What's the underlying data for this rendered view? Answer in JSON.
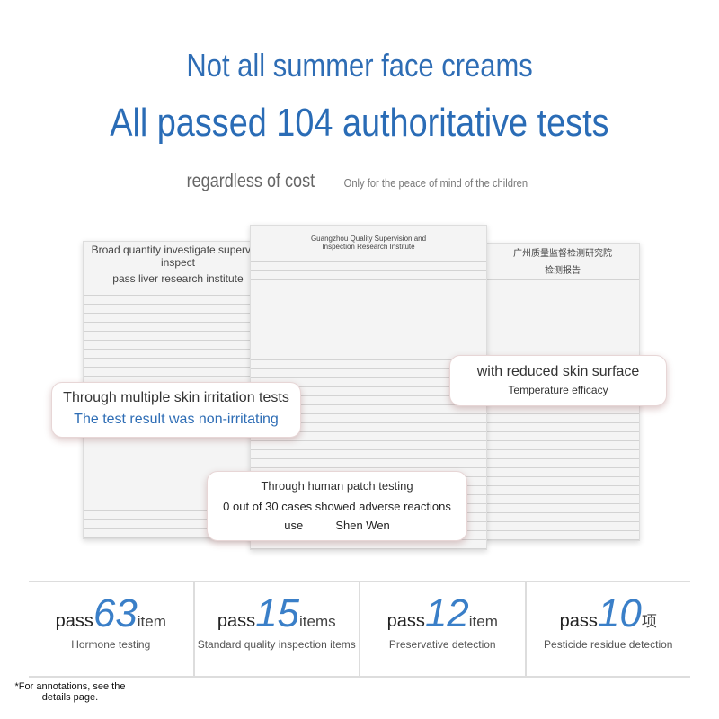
{
  "header": {
    "title": "Not all summer face creams",
    "subtitle": "All passed 104 authoritative tests"
  },
  "tagline": {
    "main": "regardless of cost",
    "sub": "Only for the peace of mind of the children"
  },
  "documents": [
    {
      "title": "Broad quantity investigate supervise inspect",
      "subtitle": "pass liver research institute"
    },
    {
      "title": "Guangzhou Quality Supervision and Inspection Research Institute"
    },
    {
      "title": "广州质量监督检测研究院",
      "subtitle": "检测报告"
    }
  ],
  "callouts": [
    {
      "top": "Through multiple skin irritation tests",
      "bottom": "The test result was non-irritating"
    },
    {
      "top": "with reduced skin surface",
      "bottom": "Temperature efficacy"
    },
    {
      "top": "Through human patch testing",
      "bottom": "0 out of 30 cases showed adverse reactions",
      "signer_label": "use",
      "signer": "Shen Wen"
    }
  ],
  "stats": [
    {
      "prefix": "pass",
      "number": "63",
      "unit": "item",
      "label": "Hormone testing"
    },
    {
      "prefix": "pass",
      "number": "15",
      "unit": "items",
      "label": "Standard quality inspection items"
    },
    {
      "prefix": "pass",
      "number": "12",
      "unit": "item",
      "label": "Preservative detection"
    },
    {
      "prefix": "pass",
      "number": "10",
      "unit": "项",
      "label": "Pesticide residue detection"
    }
  ],
  "footnote": "*For annotations, see the details page."
}
